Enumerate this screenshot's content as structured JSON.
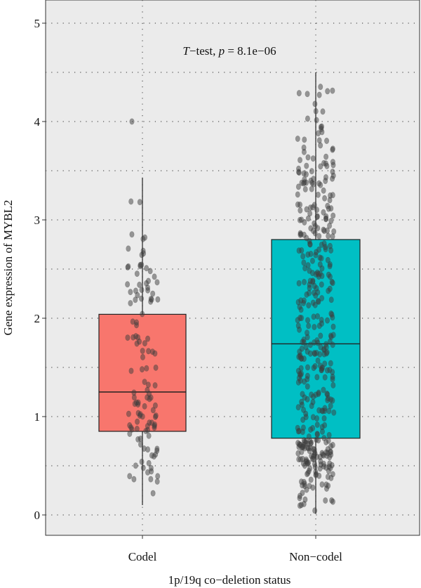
{
  "chart_data": {
    "type": "box",
    "title": "",
    "annotation": {
      "t_part": "T",
      "rest": "−test, ",
      "p_part": "p",
      "value": " = 8.1e−06"
    },
    "xlabel": "1p/19q co−deletion status",
    "ylabel": "Gene expression of MYBL2",
    "ylim": [
      -0.2,
      5.25
    ],
    "yticks": [
      0,
      1,
      2,
      3,
      4,
      5
    ],
    "ytick_labels": [
      "0",
      "1",
      "2",
      "3",
      "4",
      "5"
    ],
    "grid": true,
    "legend": "none",
    "categories": [
      "Codel",
      "Non−codel"
    ],
    "colors": {
      "Codel": "#f8766d",
      "Non−codel": "#00bfc4",
      "panel": "#ebebeb",
      "point": "#3d3d3d"
    },
    "boxes": [
      {
        "category": "Codel",
        "whisker_low": 0.1,
        "q1": 0.85,
        "median": 1.25,
        "q3": 2.04,
        "whisker_high": 3.43,
        "outliers": [
          4.0
        ]
      },
      {
        "category": "Non−codel",
        "whisker_low": 0.01,
        "q1": 0.78,
        "median": 1.74,
        "q3": 2.8,
        "whisker_high": 4.5,
        "outliers": []
      }
    ],
    "n_points": [
      120,
      430
    ]
  }
}
